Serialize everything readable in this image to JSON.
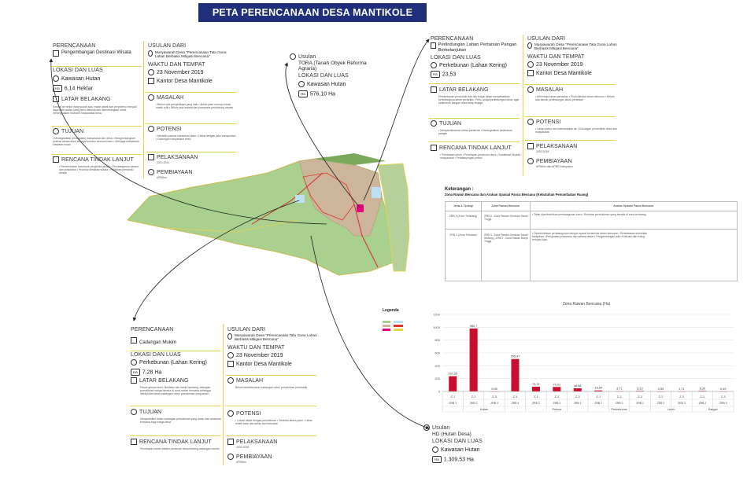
{
  "title": "PETA PERENCANAAN DESA MANTIKOLE",
  "panel_top_left": {
    "perencanaan_h": "PERENCANAAN",
    "perencanaan_v": "Pengembangan Destinasi Wisata",
    "lokasi_h": "LOKASI DAN LUAS",
    "lokasi_v": "Kawasan Hutan",
    "luas_unit": "Ha",
    "luas_v": "6,14 Hektar",
    "latar_h": "LATAR BELAKANG",
    "latar_t": "Kondisi air terjun yang sudah ada, masih alami dan berpotensi menjadi daya tarik wisata yang perlu dikelola dan dikembangkan untuk meningkatkan ekonomi masyarakat desa.",
    "tujuan_h": "TUJUAN",
    "tujuan_t": "• Meningkatkan pendapatan masyarakat dan desa • Mengembangkan potensi wisata alam sebagai sumber ekonomi baru • Menjaga kelestarian kawasan hutan",
    "rencana_h": "RENCANA TINDAK LANJUT",
    "rencana_t": "• Pembentukan kelompok pengelola wisata • Pembangunan sarana dan prasarana • Promosi destinasi wisata • Pelatihan pemandu wisata",
    "usulan_h": "USULAN DARI",
    "usulan_v": "Musyawarah Desa \"Perencanaan Tata Guna Lahan Berbasis Mitigasi Bencana\"",
    "waktu_h": "WAKTU DAN TEMPAT",
    "waktu_v": "23 November 2019",
    "tempat_v": "Kantor Desa Mantikole",
    "masalah_h": "MASALAH",
    "masalah_t": "• Belum ada pengelolaan yang baik • Akses jalan menuju lokasi masih sulit • Belum ada sarana dan prasarana pendukung wisata",
    "potensi_h": "POTENSI",
    "potensi_t": "• Memiliki potensi keindahan alam • Dekat dengan jalur transportasi • Dukungan masyarakat desa",
    "pelaksanaan_h": "PELAKSANAAN",
    "pelaksanaan_t": "2020-2021",
    "pembiayaan_h": "PEMBIAYAAN",
    "pembiayaan_t": "APBDes"
  },
  "panel_mid_top": {
    "usulan_h": "Usulan",
    "usulan_v": "TORA (Tanah Obyek Reforma Agraria)",
    "lokasi_h": "LOKASI DAN LUAS",
    "lokasi_v": "Kawasan Hutan",
    "luas_unit": "Ha",
    "luas_v": "576,10 Ha"
  },
  "panel_top_right": {
    "perencanaan_h": "PERENCANAAN",
    "perencanaan_v": "Perlindungan Lahan Pertanian Pangan Berkelanjutan",
    "lokasi_h": "LOKASI DAN LUAS",
    "lokasi_v": "Perkebunan (Lahan Kering)",
    "luas_unit": "Ha",
    "luas_v": "23,53",
    "latar_h": "LATAR BELAKANG",
    "latar_t": "Pertambahan penduduk dan alih fungsi lahan menyebabkan berkurangnya lahan pertanian. Perlu upaya perlindungan lahan agar ketahanan pangan desa tetap terjaga.",
    "tujuan_h": "TUJUAN",
    "tujuan_t": "• Mempertahankan lahan pertanian • Meningkatkan ketahanan pangan",
    "rencana_h": "RENCANA TINDAK LANJUT",
    "rencana_t": "• Pendataan lahan • Penetapan peraturan desa • Sosialisasi kepada masyarakat • Pendampingan petani",
    "usulan_h": "USULAN DARI",
    "usulan_v": "Musyawarah Desa \"Perencanaan Tata Guna Lahan Berbasis Mitigasi Bencana\"",
    "waktu_h": "WAKTU DAN TEMPAT",
    "waktu_v": "23 November 2019",
    "tempat_v": "Kantor Desa Mantikole",
    "masalah_h": "MASALAH",
    "masalah_t": "• Alih fungsi lahan pertanian • Produktivitas lahan menurun • Belum ada aturan perlindungan lahan pertanian",
    "potensi_h": "POTENSI",
    "potensi_t": "• Lahan subur dan ketersediaan air • Dukungan pemerintah desa dan masyarakat",
    "pelaksanaan_h": "PELAKSANAAN",
    "pelaksanaan_t": "2020-2025",
    "pembiayaan_h": "PEMBIAYAAN",
    "pembiayaan_t": "APBDes dan APBD Kabupaten"
  },
  "panel_bottom_left": {
    "perencanaan_h": "PERENCANAAN",
    "perencanaan_v": "Cadangan Mukim",
    "lokasi_h": "LOKASI DAN LUAS",
    "lokasi_v": "Perkebunan (Lahan Kering)",
    "luas_unit": "Ha",
    "luas_v": "7,28 Ha",
    "latar_h": "LATAR BELAKANG",
    "latar_t": "Pasca gempa bumi, likuifaksi dan banjir bandang, sebagian pemukiman warga berada di zona rawan bencana sehingga dibutuhkan lahan cadangan untuk pemukiman yang aman.",
    "tujuan_h": "TUJUAN",
    "tujuan_t": "Menyediakan lahan cadangan pemukiman yang aman dari ancaman bencana bagi warga desa.",
    "rencana_h": "RENCANA TINDAK LANJUT",
    "rencana_t": "Penetapan lokasi melalui peraturan desa tentang cadangan mukim.",
    "usulan_h": "USULAN DARI",
    "usulan_v": "Musyawarah Desa \"Perencanaan Tata Guna Lahan Berbasis Mitigasi Bencana\"",
    "waktu_h": "WAKTU DAN TEMPAT",
    "waktu_v": "23 November 2019",
    "tempat_v": "Kantor Desa Mantikole",
    "masalah_h": "MASALAH",
    "masalah_t": "Belum tersedia lahan cadangan untuk pemukiman penduduk.",
    "potensi_h": "POTENSI",
    "potensi_t": "• Lokasi dekat dengan pemukiman • Tersedia akses jalan • Lahan relatif datar dan aman dari bencana",
    "pelaksanaan_h": "PELAKSANAAN",
    "pelaksanaan_t": "2020-2025",
    "pembiayaan_h": "PEMBIAYAAN",
    "pembiayaan_t": "APBDes"
  },
  "panel_bottom_right": {
    "usulan_h": "Usulan",
    "usulan_v": "HD (Hutan Desa)",
    "lokasi_h": "LOKASI DAN LUAS",
    "lokasi_v": "Kawasan Hutan",
    "luas_unit": "Ha",
    "luas_v": "1.309,53 Ha"
  },
  "ket": {
    "title": "Keterangan :",
    "subtitle": "Zona Rawan Bencana dan Arahan Spasial Pasca Bencana (Kebutuhan Pemanfaatan Ruang)",
    "col1": "Jenis & Tipologi",
    "col2": "Zona Rawan Bencana",
    "col3": "Arahan Spasial Pasca Bencana",
    "rows": [
      {
        "c1": "ZRB 4 (Zona Terlarang)",
        "c2": "ZRB 4 : Zona Rawan Gerakan Tanah Tinggi",
        "c3": "• Tidak diperbolehkan pembangunan baru • Relokasi permukiman yang berada di zona terlarang"
      },
      {
        "c1": "ZRB 3 (Zona Terbatas)",
        "c2": "ZRB 3 : Zona Rawan Gerakan Tanah Sedang | ZRB 3 : Zona Rawan Banjir Tinggi",
        "c3": "• Diperbolehkan pembangunan dengan syarat konstruksi tahan bencana • Pembatasan intensitas bangunan • Penguatan prasarana dan sarana dasar • Pengembangan jalur evakuasi dan ruang terbuka hijau"
      }
    ]
  },
  "legend_title": "Legenda",
  "chart_data": {
    "type": "bar",
    "title": "Zona Rawan Bencana (Ha)",
    "ylim": [
      0,
      1200
    ],
    "yticks": [
      0,
      200,
      400,
      600,
      800,
      1000,
      1200
    ],
    "categories": [
      "Z-1",
      "Z-2",
      "Z-3",
      "Z-4",
      "Z-1",
      "Z-2",
      "Z-3",
      "Z-1",
      "Z-2",
      "Z-3",
      "Z-2",
      "Z-3",
      "Z-2",
      "Z-3"
    ],
    "subcats": [
      "ZRB 1",
      "ZRB 2",
      "ZRB 3",
      "ZRB 4",
      "ZRB 2",
      "ZRB 3",
      "ZRB 1",
      "ZRB 2",
      "ZRB 3",
      "ZRB 1",
      "ZRB 2",
      "ZRB 3",
      "ZRB 2",
      "ZRB 3"
    ],
    "groups": [
      {
        "name": "Hutan",
        "from": 0,
        "to": 3
      },
      {
        "name": "Pelosa",
        "from": 4,
        "to": 6
      },
      {
        "name": "Perkebunan",
        "from": 7,
        "to": 9
      },
      {
        "name": "Lereh",
        "from": 10,
        "to": 11
      },
      {
        "name": "Sangal",
        "from": 12,
        "to": 13
      }
    ],
    "values": [
      237.35,
      980.7,
      0.05,
      505.47,
      73.71,
      70.01,
      48.88,
      15.69,
      3.71,
      8.12,
      0.55,
      1.71,
      8.2,
      0.49
    ],
    "labels": [
      "237,35",
      "980,7",
      "0,05",
      "505,47",
      "73,71",
      "70,01",
      "48,88",
      "15,69",
      "3,71",
      "8,12",
      "0,55",
      "1,71",
      "8,20",
      "0,49"
    ],
    "bar_color": "#c8102e"
  }
}
